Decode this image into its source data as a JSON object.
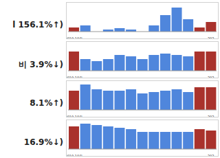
{
  "chart_data": [
    {
      "type": "bar",
      "annotation": "l 156.1%↑)",
      "categories": [
        "2019.10월",
        null,
        null,
        null,
        null,
        null,
        null,
        null,
        null,
        null,
        null,
        null,
        "202"
      ],
      "values": [
        6,
        9,
        0,
        3,
        5,
        3,
        0,
        9,
        24,
        35,
        18,
        6,
        14
      ],
      "colors": [
        "#a9322c",
        "#4f86dc",
        "#4f86dc",
        "#4f86dc",
        "#4f86dc",
        "#4f86dc",
        "#4f86dc",
        "#4f86dc",
        "#4f86dc",
        "#4f86dc",
        "#4f86dc",
        "#a9322c",
        "#a9322c"
      ],
      "ylim": [
        0,
        40
      ],
      "yticks": [],
      "tick_labels": "x"
    },
    {
      "type": "bar",
      "annotation": "비 3.9%↓)",
      "categories": [
        "2019.10월",
        null,
        null,
        null,
        null,
        null,
        null,
        null,
        null,
        null,
        null,
        null,
        "202"
      ],
      "values": [
        28,
        17,
        14,
        17,
        23,
        21,
        17,
        23,
        25,
        23,
        21,
        28,
        28
      ],
      "colors": [
        "#a9322c",
        "#4f86dc",
        "#4f86dc",
        "#4f86dc",
        "#4f86dc",
        "#4f86dc",
        "#4f86dc",
        "#4f86dc",
        "#4f86dc",
        "#4f86dc",
        "#4f86dc",
        "#a9322c",
        "#a9322c"
      ],
      "ylim": [
        0,
        40
      ],
      "yticks": [],
      "tick_labels": "x"
    },
    {
      "type": "bar",
      "annotation": "8.1%↑)",
      "categories": [
        "2019.10월",
        null,
        null,
        null,
        null,
        null,
        null,
        null,
        null,
        null,
        null,
        null,
        "202"
      ],
      "values": [
        28,
        37,
        30,
        28,
        28,
        30,
        24,
        26,
        28,
        30,
        26,
        33,
        33
      ],
      "colors": [
        "#a9322c",
        "#4f86dc",
        "#4f86dc",
        "#4f86dc",
        "#4f86dc",
        "#4f86dc",
        "#4f86dc",
        "#4f86dc",
        "#4f86dc",
        "#4f86dc",
        "#4f86dc",
        "#a9322c",
        "#a9322c"
      ],
      "ylim": [
        0,
        40
      ],
      "yticks": [],
      "tick_labels": "x"
    },
    {
      "type": "bar",
      "annotation": "16.9%↓)",
      "categories": [
        "2019.10월",
        null,
        null,
        null,
        null,
        null,
        null,
        null,
        null,
        null,
        null,
        null,
        "202"
      ],
      "values": [
        33,
        37,
        35,
        33,
        31,
        29,
        25,
        25,
        25,
        25,
        25,
        29,
        27
      ],
      "colors": [
        "#a9322c",
        "#4f86dc",
        "#4f86dc",
        "#4f86dc",
        "#4f86dc",
        "#4f86dc",
        "#4f86dc",
        "#4f86dc",
        "#4f86dc",
        "#4f86dc",
        "#4f86dc",
        "#a9322c",
        "#a9322c"
      ],
      "ylim": [
        0,
        40
      ],
      "yticks": [],
      "tick_labels": "x"
    }
  ]
}
